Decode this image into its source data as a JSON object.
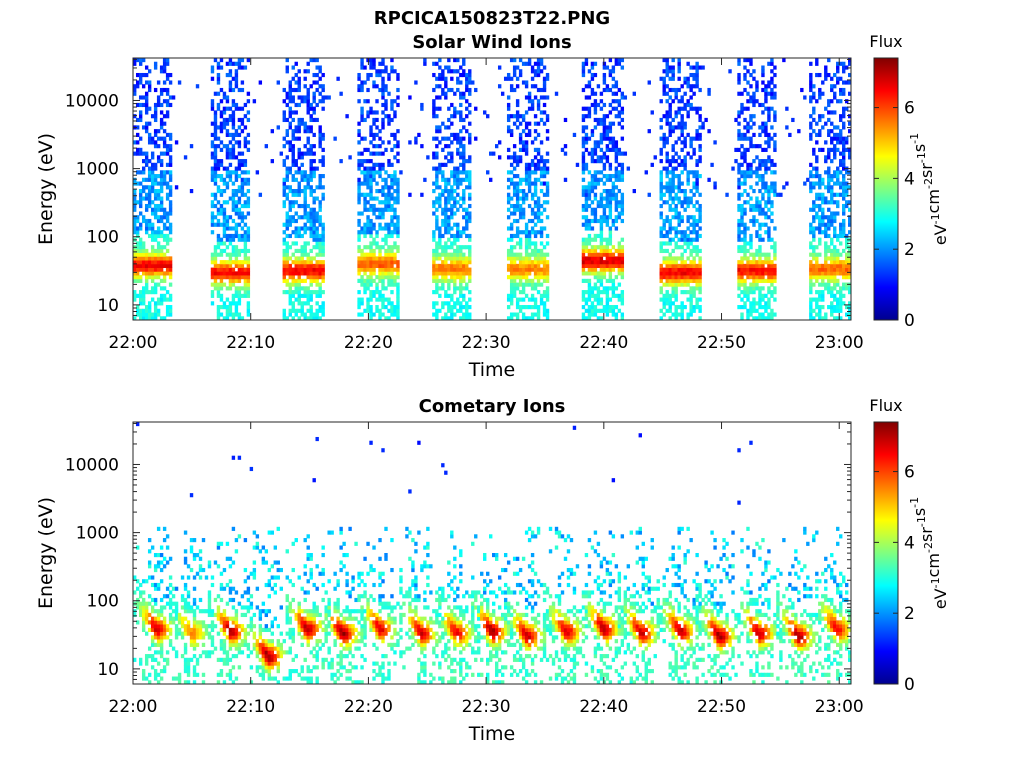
{
  "figure": {
    "filename": "RPCICA150823T22.PNG"
  },
  "colormap": "jet",
  "chart_data": [
    {
      "type": "heatmap",
      "title": "Solar Wind Ions",
      "xlabel": "Time",
      "ylabel": "Energy (eV)",
      "x_ticks": [
        "22:00",
        "22:10",
        "22:20",
        "22:30",
        "22:40",
        "22:50",
        "23:00"
      ],
      "y_ticks": [
        "10",
        "100",
        "1000",
        "10000"
      ],
      "y_scale": "log",
      "ylim": [
        6,
        42000
      ],
      "xlim_minutes": [
        0,
        61
      ],
      "colorbar": {
        "label_top": "Flux",
        "unit_parts": [
          "eV",
          "-1",
          "cm",
          "-2",
          "sr",
          "-1",
          "s",
          "-1"
        ],
        "ticks": [
          "0",
          "2",
          "4",
          "6"
        ],
        "range": [
          0,
          7.4
        ]
      },
      "bursts": [
        {
          "start_min": 0.0,
          "end_min": 3.2,
          "peak_energy_ev": 38,
          "peak_flux": 6.3
        },
        {
          "start_min": 6.5,
          "end_min": 9.8,
          "peak_energy_ev": 30,
          "peak_flux": 6.2
        },
        {
          "start_min": 12.8,
          "end_min": 16.2,
          "peak_energy_ev": 32,
          "peak_flux": 6.3
        },
        {
          "start_min": 19.0,
          "end_min": 22.5,
          "peak_energy_ev": 40,
          "peak_flux": 5.6
        },
        {
          "start_min": 25.3,
          "end_min": 28.8,
          "peak_energy_ev": 34,
          "peak_flux": 5.4
        },
        {
          "start_min": 31.8,
          "end_min": 35.3,
          "peak_energy_ev": 34,
          "peak_flux": 5.3
        },
        {
          "start_min": 38.2,
          "end_min": 41.6,
          "peak_energy_ev": 45,
          "peak_flux": 6.5
        },
        {
          "start_min": 44.8,
          "end_min": 48.2,
          "peak_energy_ev": 30,
          "peak_flux": 6.3
        },
        {
          "start_min": 51.3,
          "end_min": 54.6,
          "peak_energy_ev": 32,
          "peak_flux": 6.2
        },
        {
          "start_min": 57.5,
          "end_min": 61.0,
          "peak_energy_ev": 34,
          "peak_flux": 5.5
        }
      ]
    },
    {
      "type": "heatmap",
      "title": "Cometary Ions",
      "xlabel": "Time",
      "ylabel": "Energy (eV)",
      "x_ticks": [
        "22:00",
        "22:10",
        "22:20",
        "22:30",
        "22:40",
        "22:50",
        "23:00"
      ],
      "y_ticks": [
        "10",
        "100",
        "1000",
        "10000"
      ],
      "y_scale": "log",
      "ylim": [
        6,
        42000
      ],
      "xlim_minutes": [
        0,
        61
      ],
      "colorbar": {
        "label_top": "Flux",
        "unit_parts": [
          "eV",
          "-1",
          "cm",
          "-2",
          "sr",
          "-1",
          "s",
          "-1"
        ],
        "ticks": [
          "0",
          "2",
          "4",
          "6"
        ],
        "range": [
          0,
          7.4
        ]
      },
      "bursts": [
        {
          "center_min": 2.0,
          "peak_energy_ev": 38,
          "peak_flux": 6.6
        },
        {
          "center_min": 5.0,
          "peak_energy_ev": 33,
          "peak_flux": 5.4
        },
        {
          "center_min": 8.3,
          "peak_energy_ev": 35,
          "peak_flux": 6.8
        },
        {
          "center_min": 11.5,
          "peak_energy_ev": 15,
          "peak_flux": 7.0
        },
        {
          "center_min": 14.8,
          "peak_energy_ev": 38,
          "peak_flux": 6.9
        },
        {
          "center_min": 17.8,
          "peak_energy_ev": 33,
          "peak_flux": 7.0
        },
        {
          "center_min": 21.0,
          "peak_energy_ev": 38,
          "peak_flux": 6.5
        },
        {
          "center_min": 24.5,
          "peak_energy_ev": 33,
          "peak_flux": 6.6
        },
        {
          "center_min": 27.5,
          "peak_energy_ev": 33,
          "peak_flux": 6.4
        },
        {
          "center_min": 30.5,
          "peak_energy_ev": 35,
          "peak_flux": 7.0
        },
        {
          "center_min": 33.5,
          "peak_energy_ev": 30,
          "peak_flux": 6.7
        },
        {
          "center_min": 36.8,
          "peak_energy_ev": 35,
          "peak_flux": 6.6
        },
        {
          "center_min": 40.0,
          "peak_energy_ev": 38,
          "peak_flux": 6.8
        },
        {
          "center_min": 43.2,
          "peak_energy_ev": 33,
          "peak_flux": 6.7
        },
        {
          "center_min": 46.5,
          "peak_energy_ev": 35,
          "peak_flux": 6.7
        },
        {
          "center_min": 49.8,
          "peak_energy_ev": 30,
          "peak_flux": 7.0
        },
        {
          "center_min": 53.2,
          "peak_energy_ev": 33,
          "peak_flux": 6.7
        },
        {
          "center_min": 56.5,
          "peak_energy_ev": 30,
          "peak_flux": 6.9
        },
        {
          "center_min": 59.8,
          "peak_energy_ev": 38,
          "peak_flux": 6.4
        }
      ]
    }
  ]
}
